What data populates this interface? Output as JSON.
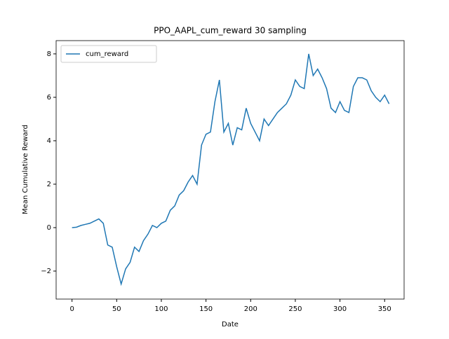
{
  "chart_data": {
    "type": "line",
    "title": "PPO_AAPL_cum_reward 30 sampling",
    "x_label": "Date",
    "y_label": "Mean Cumulative Reward",
    "x": [
      0,
      5,
      10,
      15,
      20,
      25,
      30,
      35,
      40,
      45,
      50,
      55,
      60,
      65,
      70,
      75,
      80,
      85,
      90,
      95,
      100,
      105,
      110,
      115,
      120,
      125,
      130,
      135,
      140,
      145,
      150,
      155,
      160,
      165,
      170,
      175,
      180,
      185,
      190,
      195,
      200,
      205,
      210,
      215,
      220,
      225,
      230,
      235,
      240,
      245,
      250,
      255,
      260,
      265,
      270,
      275,
      280,
      285,
      290,
      295,
      300,
      305,
      310,
      315,
      320,
      325,
      330,
      335,
      340,
      345,
      350,
      355
    ],
    "series": [
      {
        "name": "cum_reward",
        "color": "#1f77b4",
        "values": [
          0,
          0.02,
          0.1,
          0.15,
          0.2,
          0.3,
          0.4,
          0.2,
          -0.8,
          -0.9,
          -1.8,
          -2.6,
          -1.9,
          -1.6,
          -0.9,
          -1.1,
          -0.6,
          -0.3,
          0.1,
          0.0,
          0.2,
          0.3,
          0.8,
          1.0,
          1.5,
          1.7,
          2.1,
          2.4,
          2.0,
          3.8,
          4.3,
          4.4,
          5.8,
          6.8,
          4.4,
          4.8,
          3.8,
          4.6,
          4.5,
          5.5,
          4.8,
          4.4,
          4.0,
          5.0,
          4.7,
          5.0,
          5.3,
          5.5,
          5.7,
          6.1,
          6.8,
          6.5,
          6.4,
          8.0,
          7.0,
          7.3,
          6.9,
          6.4,
          5.5,
          5.3,
          5.8,
          5.4,
          5.3,
          6.5,
          6.9,
          6.9,
          6.8,
          6.3,
          6.0,
          5.8,
          6.1,
          5.7
        ]
      }
    ],
    "xlim": [
      -17.8,
      371.8
    ],
    "ylim": [
      -3.29,
      8.61
    ],
    "xticks": [
      0,
      50,
      100,
      150,
      200,
      250,
      300,
      350
    ],
    "yticks": [
      {
        "value": -2,
        "label": "−2"
      },
      0,
      2,
      4,
      6,
      8
    ],
    "legend": "upper left"
  }
}
